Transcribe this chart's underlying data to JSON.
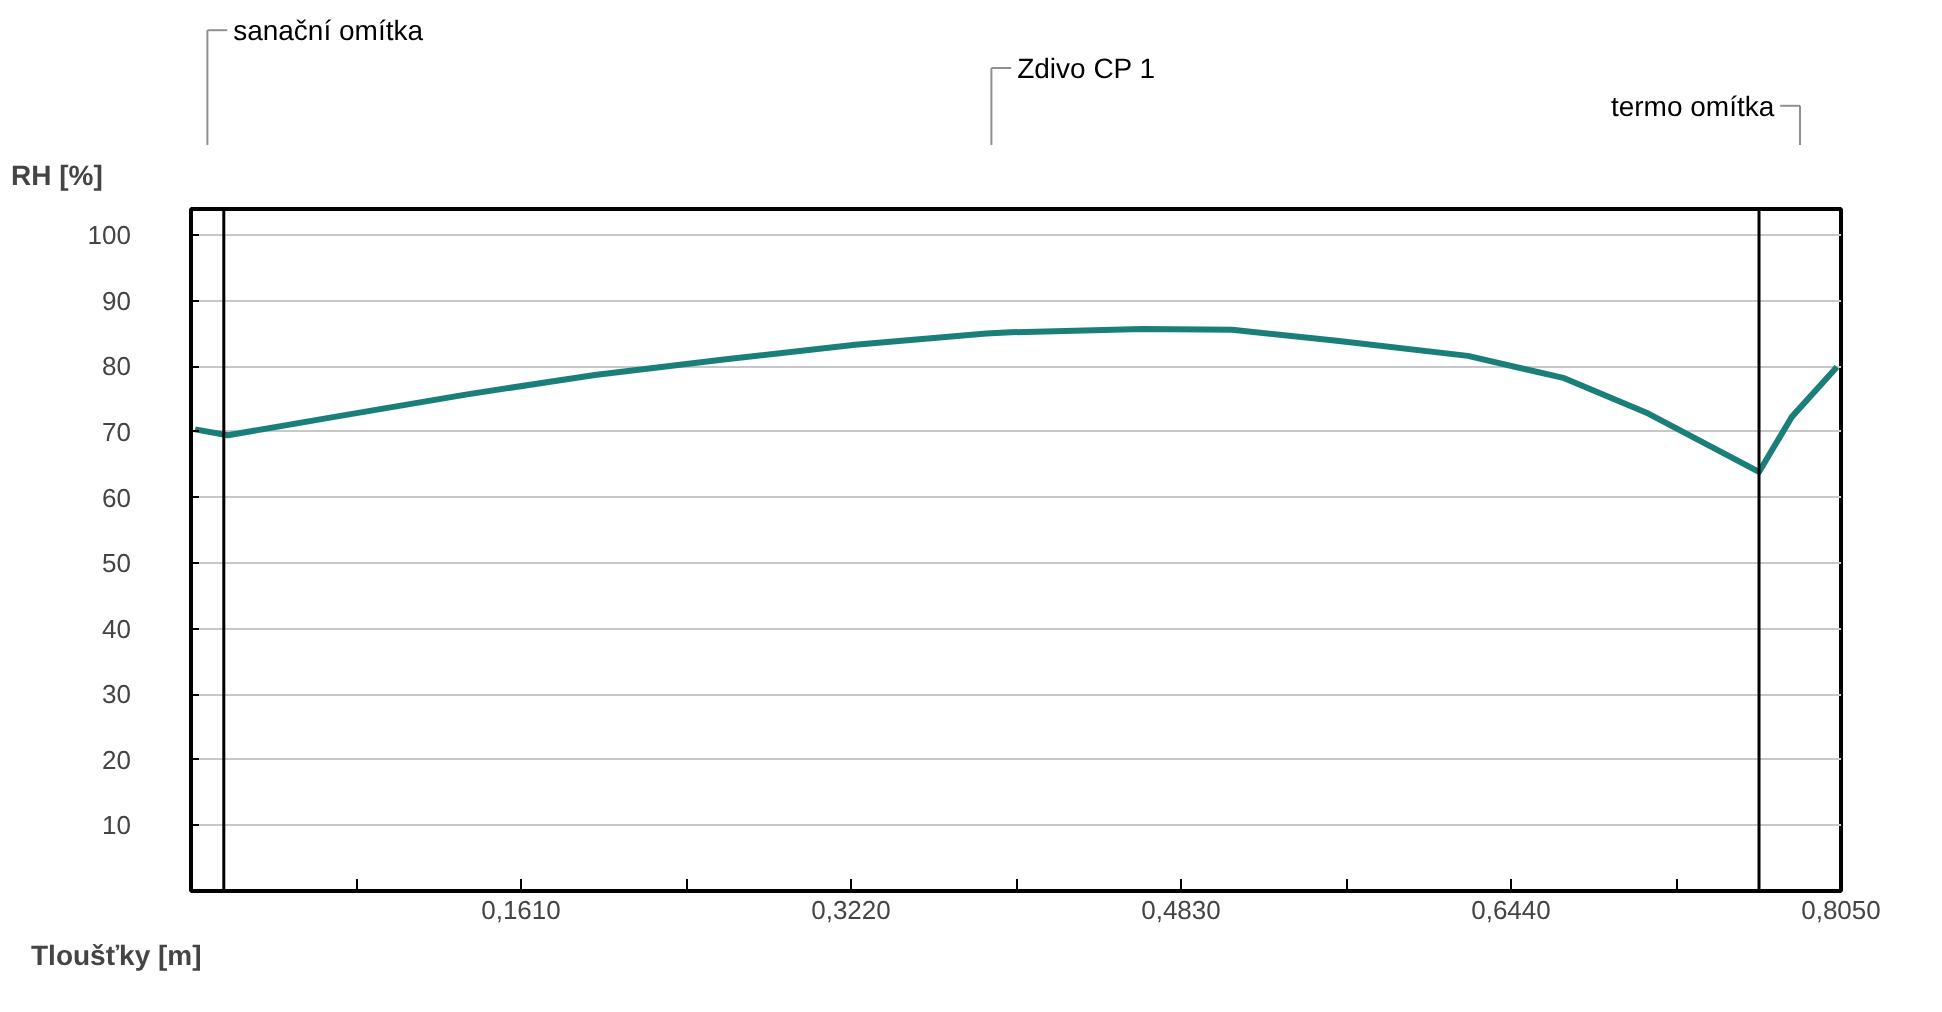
{
  "chart_data": {
    "type": "line",
    "xlabel": "Tloušťky [m]",
    "ylabel": "RH [%]",
    "annotations": [
      "sanační omítka",
      "Zdivo CP 1",
      "termo omítka"
    ],
    "x": [
      0.002,
      0.018,
      0.07,
      0.134,
      0.197,
      0.261,
      0.324,
      0.388,
      0.4,
      0.464,
      0.508,
      0.559,
      0.623,
      0.67,
      0.711,
      0.765,
      0.781,
      0.803
    ],
    "series": [
      {
        "color": "#1a7f78",
        "values": [
          70.4,
          69.5,
          72.3,
          75.7,
          78.7,
          81.1,
          83.3,
          85.0,
          85.2,
          85.7,
          85.6,
          83.9,
          81.6,
          78.2,
          72.8,
          63.9,
          72.3,
          79.9
        ]
      }
    ],
    "xlim": [
      0,
      0.805
    ],
    "ylim": [
      0,
      104
    ],
    "xticks": [
      {
        "value": 0.0805,
        "label": null
      },
      {
        "value": 0.161,
        "label": "0,1610"
      },
      {
        "value": 0.2415,
        "label": null
      },
      {
        "value": 0.322,
        "label": "0,3220"
      },
      {
        "value": 0.4025,
        "label": null
      },
      {
        "value": 0.483,
        "label": "0,4830"
      },
      {
        "value": 0.5635,
        "label": null
      },
      {
        "value": 0.644,
        "label": "0,6440"
      },
      {
        "value": 0.7245,
        "label": null
      },
      {
        "value": 0.805,
        "label": "0,8050"
      }
    ],
    "yticks": [
      10,
      20,
      30,
      40,
      50,
      60,
      70,
      80,
      90,
      100
    ],
    "ref_lines": [
      {
        "axis": "x",
        "value": 0.016,
        "label": null,
        "color": "#000000"
      },
      {
        "axis": "x",
        "value": 0.765,
        "label": null,
        "color": "#000000"
      }
    ],
    "grid": "y",
    "marker": "none",
    "line_style": "solid"
  }
}
